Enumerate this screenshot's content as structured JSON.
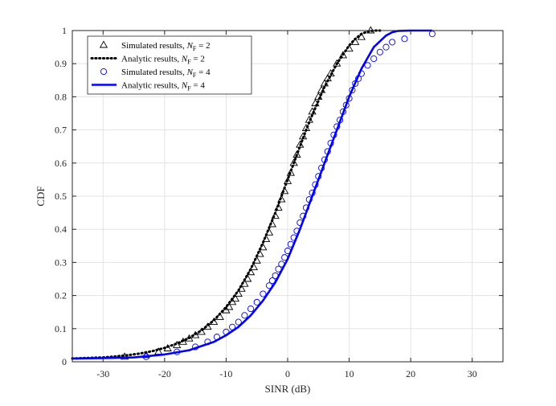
{
  "chart_data": {
    "type": "line",
    "title": "",
    "xlabel": "SINR (dB)",
    "ylabel": "CDF",
    "xlim": [
      -35,
      35
    ],
    "ylim": [
      0,
      1
    ],
    "xticks": [
      -30,
      -20,
      -10,
      0,
      10,
      20,
      30
    ],
    "yticks": [
      0,
      0.1,
      0.2,
      0.3,
      0.4,
      0.5,
      0.6,
      0.7,
      0.8,
      0.9,
      1
    ],
    "xtick_labels": [
      "-30",
      "-20",
      "-10",
      "0",
      "10",
      "20",
      "30"
    ],
    "ytick_labels": [
      "0",
      "0.1",
      "0.2",
      "0.3",
      "0.4",
      "0.5",
      "0.6",
      "0.7",
      "0.8",
      "0.9",
      "1"
    ],
    "grid": true,
    "legend_position": "top-left",
    "series": [
      {
        "name": "Simulated results, N_F = 2",
        "legend_prefix": "Simulated results, ",
        "legend_symbol": "N",
        "legend_sub": "F",
        "legend_suffix": " = 2",
        "style": "marker-triangle",
        "color": "#000000",
        "x": [
          -26.5,
          -23,
          -21,
          -19.5,
          -18,
          -17,
          -16,
          -15,
          -14,
          -13,
          -12,
          -11,
          -10,
          -9.5,
          -9,
          -8.5,
          -8,
          -7.5,
          -7,
          -6.5,
          -6,
          -5.5,
          -5,
          -4.5,
          -4,
          -3.5,
          -3,
          -2.5,
          -2,
          -1.5,
          -1,
          -0.5,
          0,
          0.5,
          1,
          1.5,
          2,
          2.5,
          3,
          3.5,
          4,
          4.5,
          5,
          5.5,
          6,
          6.5,
          7,
          8,
          9,
          10,
          11,
          12,
          13.5
        ],
        "y": [
          0.015,
          0.02,
          0.03,
          0.04,
          0.05,
          0.06,
          0.07,
          0.08,
          0.09,
          0.105,
          0.12,
          0.135,
          0.155,
          0.165,
          0.18,
          0.19,
          0.205,
          0.22,
          0.235,
          0.25,
          0.27,
          0.285,
          0.305,
          0.325,
          0.345,
          0.37,
          0.39,
          0.415,
          0.44,
          0.465,
          0.49,
          0.515,
          0.545,
          0.57,
          0.6,
          0.625,
          0.655,
          0.68,
          0.705,
          0.73,
          0.755,
          0.78,
          0.8,
          0.82,
          0.84,
          0.855,
          0.87,
          0.9,
          0.925,
          0.945,
          0.965,
          0.98,
          1.0
        ]
      },
      {
        "name": "Analytic results, N_F = 2",
        "legend_prefix": "Analytic results, ",
        "legend_symbol": "N",
        "legend_sub": "F",
        "legend_suffix": " = 2",
        "style": "dotted",
        "color": "#000000",
        "x": [
          -35,
          -32,
          -30,
          -28,
          -26,
          -24,
          -22,
          -20,
          -18,
          -16,
          -14,
          -12,
          -10,
          -8,
          -6,
          -4,
          -2,
          -1,
          0,
          1,
          2,
          3,
          4,
          6,
          8,
          10,
          11,
          12,
          13,
          14,
          15
        ],
        "y": [
          0.01,
          0.012,
          0.013,
          0.016,
          0.02,
          0.025,
          0.032,
          0.042,
          0.055,
          0.072,
          0.095,
          0.125,
          0.165,
          0.215,
          0.28,
          0.36,
          0.45,
          0.5,
          0.55,
          0.6,
          0.65,
          0.7,
          0.745,
          0.83,
          0.9,
          0.955,
          0.975,
          0.99,
          0.997,
          1.0,
          1.0
        ]
      },
      {
        "name": "Simulated results, N_F = 4",
        "legend_prefix": "Simulated results, ",
        "legend_symbol": "N",
        "legend_sub": "F",
        "legend_suffix": " = 4",
        "style": "marker-circle",
        "color": "#0000ff",
        "x": [
          -23,
          -18,
          -15,
          -13,
          -11.5,
          -10,
          -9,
          -8,
          -7,
          -6,
          -5,
          -4,
          -3,
          -2.5,
          -2,
          -1.5,
          -1,
          -0.5,
          0,
          0.5,
          1,
          1.5,
          2,
          2.5,
          3,
          3.5,
          4,
          4.5,
          5,
          5.5,
          6,
          6.5,
          7,
          7.5,
          8,
          8.5,
          9,
          9.5,
          10,
          10.5,
          11,
          11.5,
          12,
          13,
          14,
          15,
          16,
          17,
          19,
          23.5
        ],
        "y": [
          0.015,
          0.03,
          0.045,
          0.06,
          0.075,
          0.09,
          0.105,
          0.12,
          0.14,
          0.16,
          0.18,
          0.205,
          0.23,
          0.245,
          0.26,
          0.28,
          0.295,
          0.315,
          0.335,
          0.355,
          0.375,
          0.395,
          0.42,
          0.44,
          0.465,
          0.49,
          0.51,
          0.535,
          0.56,
          0.585,
          0.61,
          0.635,
          0.66,
          0.685,
          0.71,
          0.73,
          0.755,
          0.775,
          0.795,
          0.82,
          0.84,
          0.855,
          0.87,
          0.895,
          0.915,
          0.935,
          0.95,
          0.965,
          0.975,
          0.99
        ]
      },
      {
        "name": "Analytic results, N_F = 4",
        "legend_prefix": "Analytic results, ",
        "legend_symbol": "N",
        "legend_sub": "F",
        "legend_suffix": " = 4",
        "style": "solid",
        "color": "#0000ff",
        "x": [
          -35,
          -30,
          -25,
          -20,
          -16,
          -12,
          -10,
          -8,
          -6,
          -4,
          -2,
          0,
          2,
          3,
          4,
          5,
          6,
          7,
          8,
          10,
          12,
          14,
          16,
          17,
          18,
          20,
          23.5
        ],
        "y": [
          0.01,
          0.011,
          0.013,
          0.022,
          0.035,
          0.06,
          0.08,
          0.105,
          0.14,
          0.185,
          0.24,
          0.31,
          0.4,
          0.45,
          0.5,
          0.55,
          0.6,
          0.65,
          0.7,
          0.8,
          0.885,
          0.95,
          0.985,
          0.995,
          0.999,
          1.0,
          1.0
        ]
      }
    ]
  }
}
